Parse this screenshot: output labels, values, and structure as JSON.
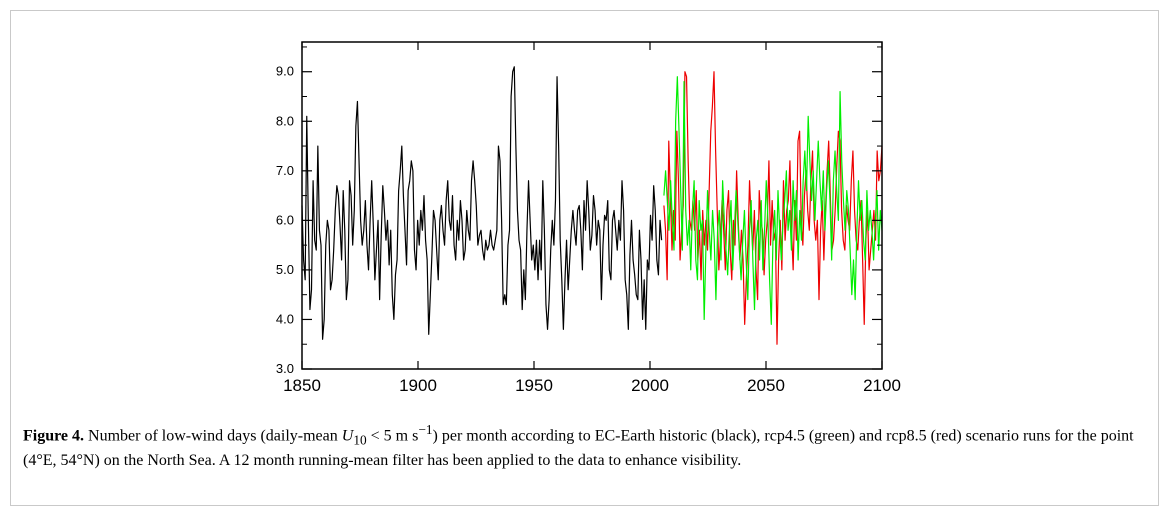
{
  "chart_data": {
    "type": "line",
    "xlim": [
      1850,
      2100
    ],
    "ylim": [
      3.0,
      9.6
    ],
    "x_ticks": [
      1850,
      1900,
      1950,
      2000,
      2050,
      2100
    ],
    "x_tick_labels": [
      "1850",
      "1900",
      "1950",
      "2000",
      "2050",
      "2100"
    ],
    "y_ticks": [
      3.0,
      4.0,
      5.0,
      6.0,
      7.0,
      8.0,
      9.0
    ],
    "y_tick_labels": [
      "3.0",
      "4.0",
      "5.0",
      "6.0",
      "7.0",
      "8.0",
      "9.0"
    ],
    "grid": false,
    "series": [
      {
        "color": "#000000",
        "x_start": 1850,
        "x_end": 2005,
        "values": [
          6.3,
          5.2,
          4.8,
          8.1,
          6.0,
          4.2,
          4.6,
          6.8,
          5.6,
          5.4,
          7.5,
          5.8,
          5.5,
          3.6,
          4.0,
          5.5,
          6.0,
          5.8,
          4.6,
          4.8,
          5.4,
          6.2,
          6.7,
          6.5,
          5.9,
          5.2,
          6.6,
          5.8,
          4.4,
          4.8,
          6.8,
          6.5,
          5.5,
          6.2,
          7.9,
          8.4,
          7.2,
          6.0,
          5.5,
          5.8,
          6.4,
          5.5,
          5.0,
          6.0,
          6.8,
          5.9,
          4.8,
          5.4,
          6.0,
          4.4,
          5.7,
          6.7,
          6.2,
          5.6,
          6.0,
          5.1,
          5.8,
          4.5,
          4.0,
          4.9,
          5.2,
          6.6,
          7.0,
          7.5,
          6.5,
          5.8,
          5.1,
          6.6,
          6.8,
          7.2,
          7.0,
          5.4,
          5.0,
          6.0,
          5.5,
          6.2,
          5.8,
          6.5,
          5.6,
          5.2,
          3.7,
          4.5,
          5.3,
          6.2,
          6.0,
          5.4,
          4.8,
          6.0,
          6.3,
          5.8,
          5.5,
          6.4,
          6.8,
          6.0,
          5.8,
          6.5,
          5.5,
          5.2,
          6.0,
          5.6,
          6.4,
          6.0,
          5.2,
          5.4,
          6.2,
          5.8,
          5.6,
          6.8,
          7.2,
          6.8,
          6.3,
          5.5,
          5.7,
          5.8,
          5.4,
          5.2,
          5.6,
          5.4,
          5.5,
          5.8,
          5.5,
          5.4,
          5.6,
          5.8,
          7.5,
          7.2,
          6.0,
          4.3,
          4.5,
          4.3,
          5.5,
          5.8,
          8.5,
          9.0,
          9.1,
          7.5,
          6.2,
          5.6,
          5.4,
          4.2,
          5.0,
          4.4,
          5.8,
          6.8,
          6.0,
          5.2,
          5.5,
          5.0,
          5.6,
          4.8,
          5.6,
          5.0,
          6.8,
          5.8,
          4.3,
          3.8,
          4.4,
          5.4,
          6.0,
          5.5,
          6.4,
          8.9,
          7.5,
          5.6,
          4.8,
          3.8,
          4.8,
          5.6,
          4.6,
          5.2,
          5.8,
          6.2,
          5.8,
          5.5,
          6.2,
          6.3,
          5.8,
          5.0,
          6.4,
          5.8,
          6.8,
          6.2,
          5.4,
          5.7,
          6.5,
          6.2,
          5.5,
          6.0,
          5.8,
          4.4,
          5.5,
          6.1,
          6.0,
          6.4,
          5.0,
          4.8,
          6.0,
          6.2,
          5.8,
          5.4,
          6.0,
          5.6,
          6.8,
          6.2,
          4.8,
          4.5,
          3.8,
          5.3,
          6.0,
          5.2,
          4.9,
          4.5,
          4.4,
          5.8,
          5.2,
          4.0,
          4.8,
          3.8,
          5.2,
          5.0,
          6.1,
          5.6,
          6.7,
          6.2,
          5.2,
          4.9,
          6.0,
          5.6
        ]
      },
      {
        "color": "#ee0000",
        "x_start": 2006,
        "x_end": 2100,
        "values": [
          6.3,
          5.8,
          4.8,
          7.6,
          6.5,
          5.4,
          6.2,
          5.6,
          7.8,
          6.8,
          5.2,
          5.8,
          6.3,
          9.0,
          8.9,
          7.2,
          6.0,
          5.8,
          6.4,
          5.8,
          6.6,
          5.2,
          5.8,
          4.8,
          6.2,
          5.5,
          6.0,
          5.4,
          6.6,
          7.8,
          8.3,
          9.0,
          7.4,
          6.2,
          5.0,
          5.6,
          6.4,
          5.8,
          5.0,
          6.2,
          6.6,
          5.4,
          4.8,
          6.0,
          5.5,
          7.0,
          6.0,
          5.2,
          5.8,
          5.2,
          3.9,
          4.8,
          5.5,
          6.8,
          6.0,
          5.4,
          6.2,
          5.0,
          4.4,
          6.6,
          6.0,
          5.8,
          4.9,
          5.6,
          6.0,
          7.2,
          5.5,
          6.4,
          5.6,
          5.8,
          3.5,
          5.2,
          6.0,
          5.0,
          6.8,
          5.6,
          6.2,
          6.4,
          7.2,
          5.8,
          5.0,
          6.4,
          5.6,
          7.6,
          7.8,
          6.0,
          5.5,
          6.5,
          7.0,
          6.2,
          5.8,
          6.8,
          7.4,
          6.0,
          5.6,
          6.0,
          4.4,
          5.8,
          6.4,
          5.2,
          6.2,
          7.0,
          7.6,
          6.5,
          5.4,
          5.6,
          6.2,
          7.1,
          7.8,
          7.6,
          6.2,
          5.6,
          5.4,
          6.3,
          6.0,
          5.8,
          6.8,
          7.4,
          6.2,
          5.6,
          5.4,
          6.0,
          6.4,
          5.2,
          3.9,
          5.6,
          6.2,
          5.0,
          5.4,
          5.8,
          6.2,
          5.6,
          7.4,
          6.8,
          7.0,
          7.5
        ]
      },
      {
        "color": "#00ee00",
        "x_start": 2006,
        "x_end": 2100,
        "values": [
          6.5,
          7.0,
          6.4,
          5.8,
          6.8,
          6.0,
          5.4,
          8.0,
          8.9,
          7.8,
          6.6,
          5.4,
          8.8,
          6.2,
          5.5,
          6.0,
          5.0,
          6.2,
          6.8,
          5.2,
          4.8,
          6.4,
          5.8,
          6.0,
          4.0,
          5.4,
          6.6,
          5.8,
          5.2,
          6.2,
          5.6,
          4.4,
          5.8,
          6.2,
          5.2,
          6.8,
          6.0,
          5.4,
          4.9,
          5.8,
          6.4,
          5.0,
          5.8,
          6.6,
          6.0,
          5.4,
          4.8,
          5.6,
          6.2,
          5.2,
          4.4,
          5.8,
          6.4,
          5.2,
          4.2,
          5.6,
          6.0,
          5.2,
          6.4,
          5.0,
          5.8,
          6.8,
          6.0,
          4.8,
          3.9,
          5.6,
          6.2,
          5.2,
          6.6,
          5.8,
          5.2,
          6.0,
          6.4,
          7.0,
          5.8,
          6.2,
          5.4,
          6.8,
          6.0,
          6.6,
          5.2,
          6.2,
          5.6,
          6.8,
          7.4,
          6.6,
          8.1,
          7.2,
          6.4,
          7.0,
          6.0,
          6.8,
          7.6,
          6.8,
          6.2,
          7.0,
          5.8,
          6.6,
          7.2,
          6.4,
          5.2,
          6.8,
          7.4,
          6.6,
          6.0,
          8.6,
          7.2,
          6.4,
          5.8,
          6.6,
          6.2,
          5.4,
          4.5,
          5.2,
          4.4,
          5.8,
          6.8,
          6.0,
          6.4,
          5.6,
          5.2,
          6.6,
          5.8,
          6.2,
          5.8,
          5.2,
          6.0,
          6.6,
          5.4,
          6.2,
          5.8
        ]
      }
    ]
  },
  "caption": {
    "label": "Figure 4.",
    "text_before_symbol": " Number of low-wind days (daily-mean ",
    "symbol": "U",
    "subscript": "10",
    "relation": " < 5 m s",
    "superscript": "−1",
    "text_after": ") per month according to EC-Earth historic (black), rcp4.5 (green) and rcp8.5 (red) scenario runs for the point (4°E, 54°N) on the North Sea. A 12 month running-mean filter has been applied to the data to enhance visibility."
  }
}
